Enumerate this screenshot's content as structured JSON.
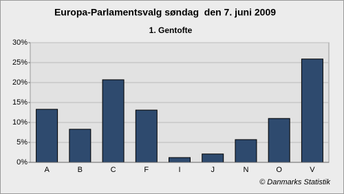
{
  "chart_data": {
    "type": "bar",
    "title": "Europa-Parlamentsvalg søndag  den 7. juni 2009",
    "subtitle": "1. Gentofte",
    "annotation": "© Danmarks Statistik",
    "categories": [
      "A",
      "B",
      "C",
      "F",
      "I",
      "J",
      "N",
      "O",
      "V"
    ],
    "values": [
      13.3,
      8.3,
      20.7,
      13.1,
      1.2,
      2.1,
      5.7,
      11.0,
      25.9
    ],
    "color": "#2e4a6e",
    "ylim": [
      0,
      30
    ],
    "yticks": [
      {
        "value": 0,
        "label": "0%"
      },
      {
        "value": 5,
        "label": "5%"
      },
      {
        "value": 10,
        "label": "10%"
      },
      {
        "value": 15,
        "label": "15%"
      },
      {
        "value": 20,
        "label": "20%"
      },
      {
        "value": 25,
        "label": "25%"
      },
      {
        "value": 30,
        "label": "30%"
      }
    ],
    "grid": true
  }
}
